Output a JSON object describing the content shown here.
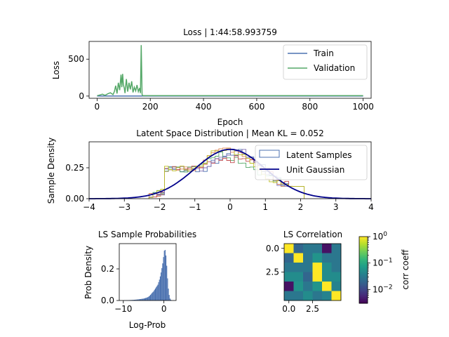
{
  "chart_data": [
    {
      "type": "line",
      "title": "Loss | 1:44:58.993759",
      "xlabel": "Epoch",
      "ylabel": "Loss",
      "xlim": [
        -30,
        1030
      ],
      "ylim": [
        -30,
        740
      ],
      "xticks": [
        0,
        200,
        400,
        600,
        800,
        1000
      ],
      "yticks": [
        0,
        500
      ],
      "legend": {
        "placement": "top-right"
      },
      "series": [
        {
          "name": "Train",
          "color": "#4c72b0",
          "x": [
            0,
            1000
          ],
          "y": [
            0,
            0
          ]
        },
        {
          "name": "Validation",
          "color": "#55a868",
          "x": [
            0,
            10,
            20,
            30,
            40,
            50,
            60,
            65,
            70,
            75,
            80,
            85,
            90,
            93,
            96,
            99,
            102,
            105,
            110,
            115,
            120,
            125,
            130,
            135,
            140,
            145,
            150,
            155,
            160,
            163,
            166,
            169,
            172,
            200,
            300,
            400,
            500,
            600,
            700,
            800,
            900,
            1000
          ],
          "y": [
            5,
            15,
            25,
            10,
            30,
            45,
            20,
            60,
            140,
            35,
            180,
            80,
            290,
            120,
            300,
            150,
            110,
            40,
            230,
            60,
            180,
            90,
            200,
            50,
            120,
            70,
            150,
            60,
            110,
            40,
            690,
            20,
            5,
            5,
            5,
            5,
            5,
            5,
            5,
            5,
            5,
            5
          ]
        }
      ]
    },
    {
      "type": "line",
      "title": "Latent Space Distribution | Mean KL = 0.052",
      "xlabel": "",
      "ylabel": "Sample Density",
      "xlim": [
        -4,
        4
      ],
      "ylim": [
        0,
        0.46
      ],
      "xticks": [
        -4,
        -3,
        -2,
        -1,
        0,
        1,
        2,
        3,
        4
      ],
      "yticks": [
        0.0,
        0.25
      ],
      "legend": {
        "placement": "top-right"
      },
      "series": [
        {
          "name": "Latent Samples",
          "color": "#4c72b0"
        },
        {
          "name": "Unit Gaussian",
          "color": "#00008b"
        }
      ],
      "histogram_colors": [
        "#4c72b0",
        "#dd8452",
        "#55a868",
        "#c44e52",
        "#8172b3",
        "#bcbd22"
      ],
      "histogram_range": [
        -2.3,
        2.1
      ]
    },
    {
      "type": "bar",
      "title": "LS Sample Probabilities",
      "xlabel": "Log-Prob",
      "ylabel": "Prob Density",
      "xlim": [
        -11,
        3
      ],
      "ylim": [
        0,
        0.36
      ],
      "xticks": [
        -10,
        0
      ],
      "yticks": [
        0.0,
        0.2
      ],
      "color": "#4c72b0",
      "bin_width": 0.2,
      "x": [
        -10.0,
        -9.0,
        -8.0,
        -7.0,
        -6.0,
        -5.0,
        -4.0,
        -3.5,
        -3.0,
        -2.5,
        -2.0,
        -1.5,
        -1.0,
        -0.6,
        -0.2,
        0.0,
        0.2,
        0.4,
        0.6,
        0.8,
        1.0,
        1.2,
        1.4,
        1.6
      ],
      "values": [
        0.001,
        0.002,
        0.003,
        0.005,
        0.008,
        0.012,
        0.02,
        0.03,
        0.045,
        0.06,
        0.08,
        0.1,
        0.14,
        0.19,
        0.25,
        0.3,
        0.33,
        0.31,
        0.26,
        0.18,
        0.1,
        0.05,
        0.02,
        0.005
      ]
    },
    {
      "type": "heatmap",
      "title": "LS Correlation",
      "xticks": [
        0.0,
        2.5
      ],
      "yticks": [
        0.0,
        2.5
      ],
      "colorbar_label": "corr coeff",
      "colorbar_ticks": [
        "10^0",
        "10^-1",
        "10^-2"
      ],
      "colormap": "viridis",
      "scale": "log",
      "range": [
        0.003,
        1.0
      ],
      "matrix": [
        [
          1.0,
          0.02,
          0.03,
          0.03,
          0.004,
          0.03
        ],
        [
          0.02,
          1.0,
          0.03,
          0.06,
          0.03,
          0.03
        ],
        [
          0.03,
          0.03,
          0.03,
          1.0,
          0.05,
          0.03
        ],
        [
          0.05,
          0.05,
          0.02,
          1.0,
          0.05,
          0.05
        ],
        [
          0.004,
          0.06,
          0.03,
          0.06,
          1.0,
          0.04
        ],
        [
          0.03,
          0.03,
          0.05,
          0.03,
          0.04,
          1.0
        ]
      ]
    }
  ]
}
